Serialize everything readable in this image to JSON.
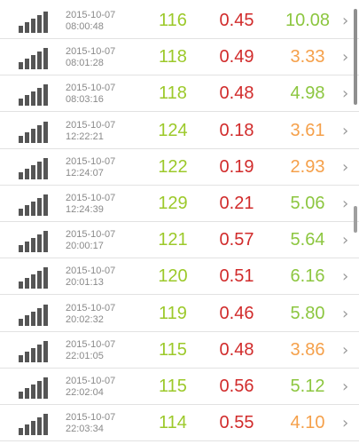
{
  "colors": {
    "first_value": "#9cc92a",
    "second_value": "#d12b2b",
    "third_value_green": "#8cc63f",
    "third_value_orange": "#f5a04a",
    "icon": "#555555"
  },
  "rows": [
    {
      "date": "2015-10-07",
      "time": "08:00:48",
      "v1": "116",
      "v2": "0.45",
      "v3": "10.08",
      "v3_color": "green"
    },
    {
      "date": "2015-10-07",
      "time": "08:01:28",
      "v1": "118",
      "v2": "0.49",
      "v3": "3.33",
      "v3_color": "orange"
    },
    {
      "date": "2015-10-07",
      "time": "08:03:16",
      "v1": "118",
      "v2": "0.48",
      "v3": "4.98",
      "v3_color": "green"
    },
    {
      "date": "2015-10-07",
      "time": "12:22:21",
      "v1": "124",
      "v2": "0.18",
      "v3": "3.61",
      "v3_color": "orange"
    },
    {
      "date": "2015-10-07",
      "time": "12:24:07",
      "v1": "122",
      "v2": "0.19",
      "v3": "2.93",
      "v3_color": "orange"
    },
    {
      "date": "2015-10-07",
      "time": "12:24:39",
      "v1": "129",
      "v2": "0.21",
      "v3": "5.06",
      "v3_color": "green"
    },
    {
      "date": "2015-10-07",
      "time": "20:00:17",
      "v1": "121",
      "v2": "0.57",
      "v3": "5.64",
      "v3_color": "green"
    },
    {
      "date": "2015-10-07",
      "time": "20:01:13",
      "v1": "120",
      "v2": "0.51",
      "v3": "6.16",
      "v3_color": "green"
    },
    {
      "date": "2015-10-07",
      "time": "20:02:32",
      "v1": "119",
      "v2": "0.46",
      "v3": "5.80",
      "v3_color": "green"
    },
    {
      "date": "2015-10-07",
      "time": "22:01:05",
      "v1": "115",
      "v2": "0.48",
      "v3": "3.86",
      "v3_color": "orange"
    },
    {
      "date": "2015-10-07",
      "time": "22:02:04",
      "v1": "115",
      "v2": "0.56",
      "v3": "5.12",
      "v3_color": "green"
    },
    {
      "date": "2015-10-07",
      "time": "22:03:34",
      "v1": "114",
      "v2": "0.55",
      "v3": "4.10",
      "v3_color": "orange"
    }
  ]
}
